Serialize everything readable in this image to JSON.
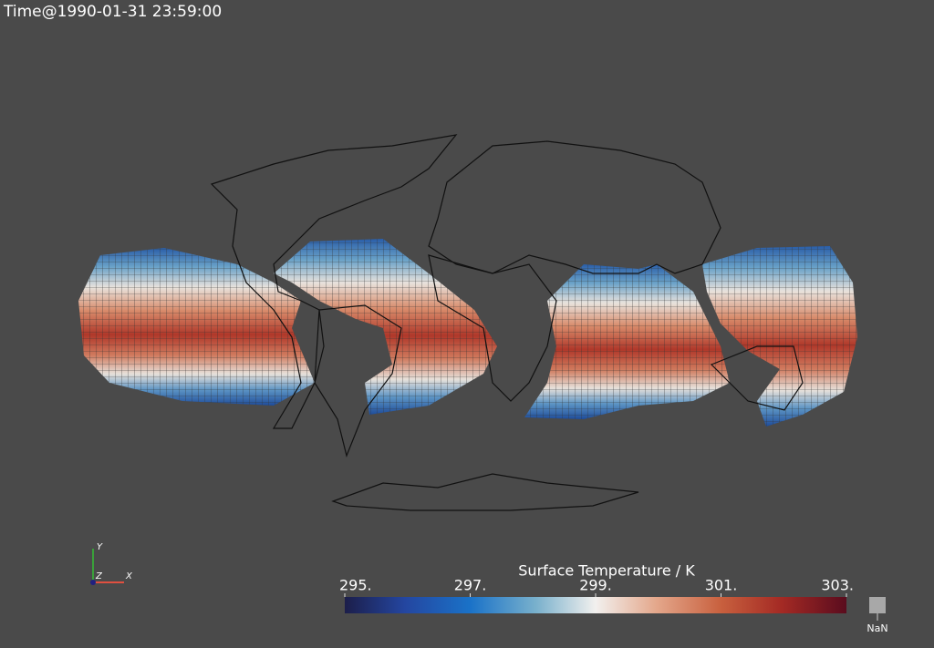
{
  "time_annotation": "Time@1990-01-31 23:59:00",
  "orientation_axes": {
    "x": "X",
    "y": "Y",
    "z": "Z"
  },
  "colorbar": {
    "title": "Surface Temperature / K",
    "range": [
      295,
      303
    ],
    "ticks": [
      {
        "value": 295,
        "label": "295."
      },
      {
        "value": 297,
        "label": "297."
      },
      {
        "value": 299,
        "label": "299."
      },
      {
        "value": 301,
        "label": "301."
      },
      {
        "value": 303,
        "label": "303."
      }
    ],
    "nan_label": "NaN"
  }
}
